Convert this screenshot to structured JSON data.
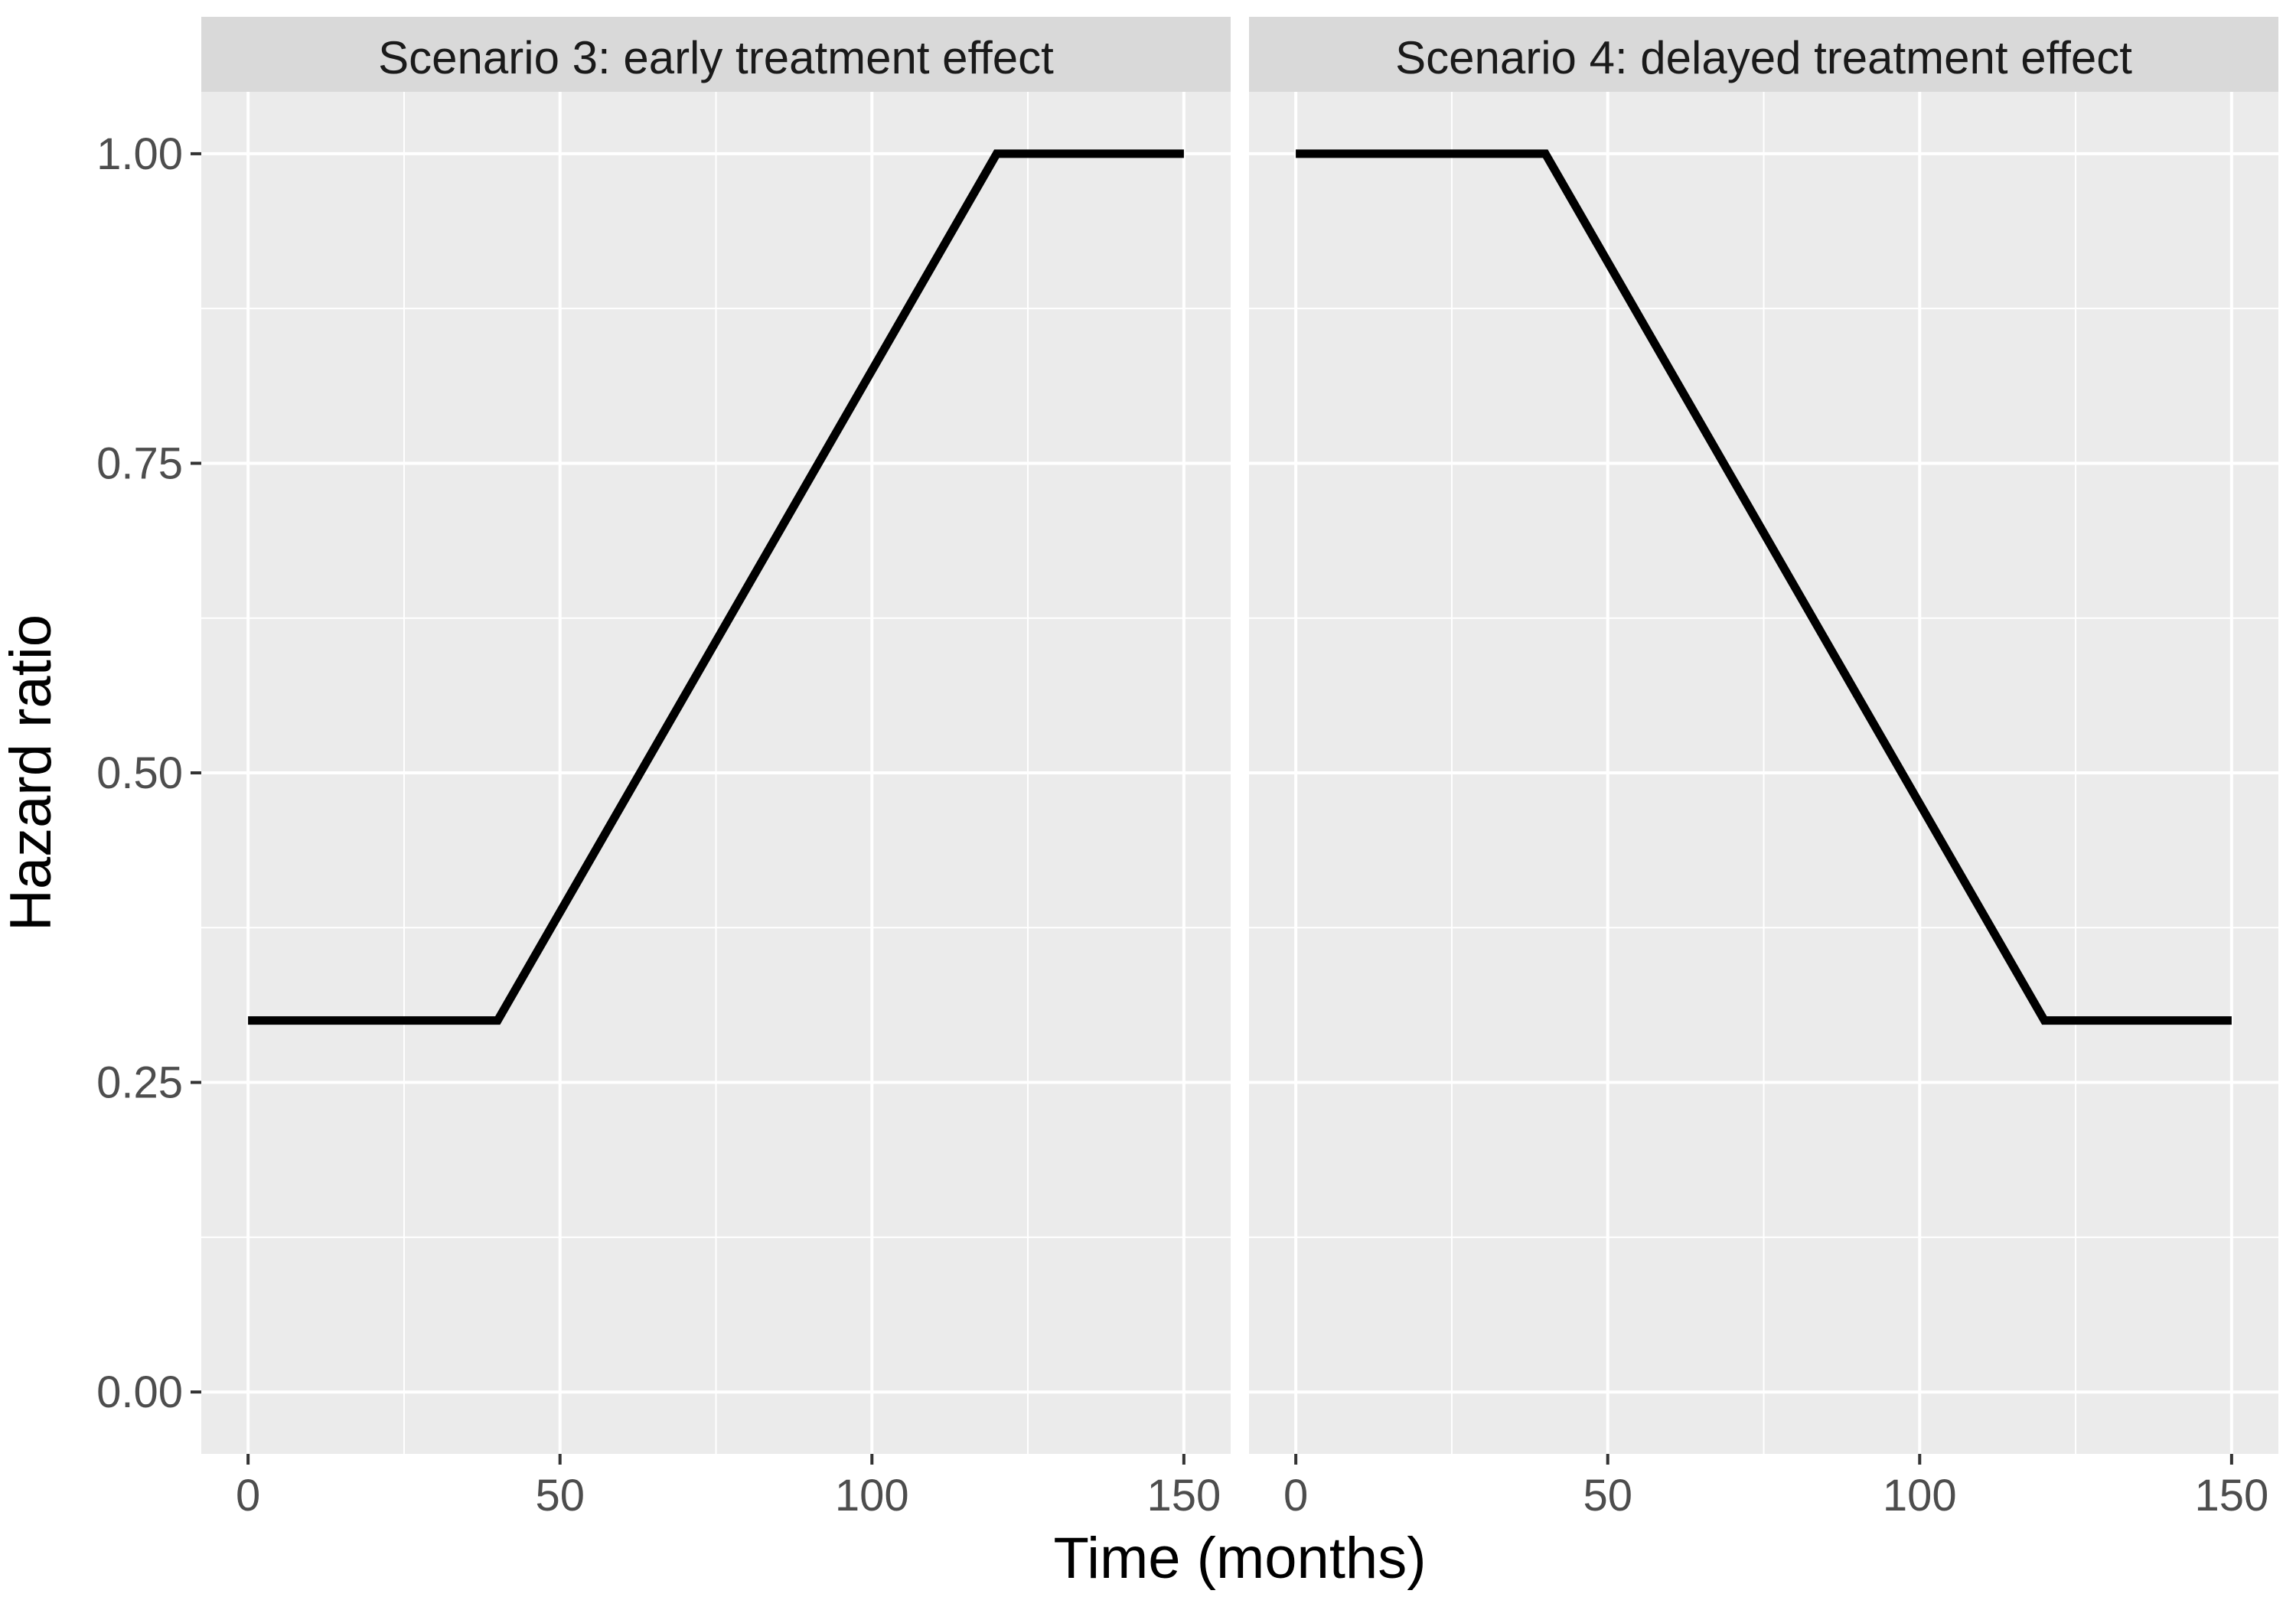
{
  "chart_data": {
    "type": "line",
    "facet_layout": "1 row x 2 columns, shared y axis",
    "xlabel": "Time (months)",
    "ylabel": "Hazard ratio",
    "xlim": [
      -7.5,
      157.5
    ],
    "ylim": [
      -0.05,
      1.05
    ],
    "x_ticks": [
      0,
      50,
      100,
      150
    ],
    "x_tick_labels": [
      "0",
      "50",
      "100",
      "150"
    ],
    "y_ticks": [
      0,
      0.25,
      0.5,
      0.75,
      1
    ],
    "y_tick_labels": [
      "0.00",
      "0.25",
      "0.50",
      "0.75",
      "1.00"
    ],
    "x_minor_ticks": [
      25,
      75,
      125
    ],
    "y_minor_ticks": [
      0.125,
      0.375,
      0.625,
      0.875
    ],
    "grid": true,
    "legend": "none",
    "colors": {
      "panel_background": "#ebebeb",
      "strip_background": "#d9d9d9",
      "grid": "#ffffff",
      "line": "#000000"
    },
    "panels": [
      {
        "strip_label": "Scenario 3: early treatment effect",
        "x": [
          0,
          40,
          120,
          150
        ],
        "y": [
          0.3,
          0.3,
          1.0,
          1.0
        ]
      },
      {
        "strip_label": "Scenario 4: delayed treatment effect",
        "x": [
          0,
          40,
          120,
          150
        ],
        "y": [
          1.0,
          1.0,
          0.3,
          0.3
        ]
      }
    ]
  }
}
